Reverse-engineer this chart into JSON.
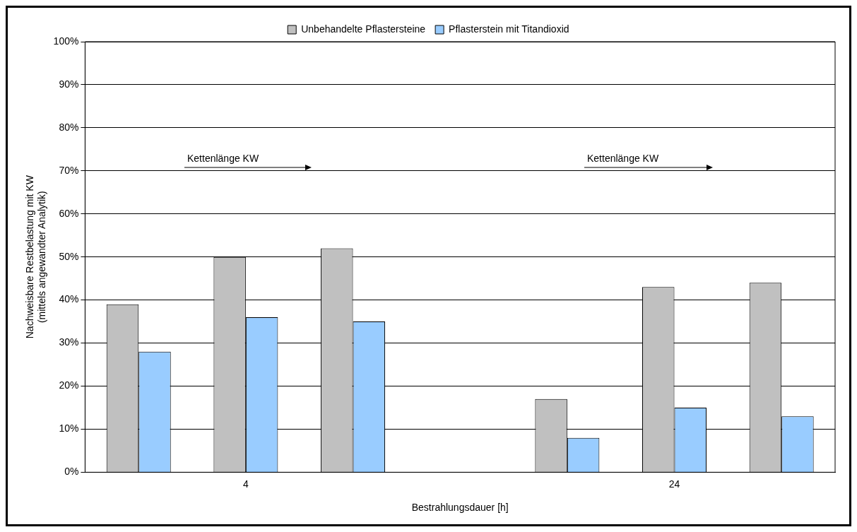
{
  "chart_data": {
    "type": "bar",
    "xlabel": "Bestrahlungsdauer [h]",
    "ylabel": "Nachweisbare Restbelastung mit KW\n(mittels angewandter Analytik)",
    "categories": [
      null,
      "4",
      null,
      null,
      null,
      "24",
      null
    ],
    "series": [
      {
        "name": "Unbehandelte Pflastersteine",
        "color": "#c0c0c0",
        "values": [
          39,
          50,
          52,
          null,
          17,
          43,
          44
        ]
      },
      {
        "name": "Pflasterstein mit Titandioxid",
        "color": "#99ccff",
        "values": [
          28,
          36,
          35,
          null,
          8,
          15,
          13
        ]
      }
    ],
    "ylim": [
      0,
      100
    ],
    "yticks": [
      {
        "value": 0,
        "label": "0%"
      },
      {
        "value": 10,
        "label": "10%"
      },
      {
        "value": 20,
        "label": "20%"
      },
      {
        "value": 30,
        "label": "30%"
      },
      {
        "value": 40,
        "label": "40%"
      },
      {
        "value": 50,
        "label": "50%"
      },
      {
        "value": 60,
        "label": "60%"
      },
      {
        "value": 70,
        "label": "70%"
      },
      {
        "value": 80,
        "label": "80%"
      },
      {
        "value": 90,
        "label": "90%"
      },
      {
        "value": 100,
        "label": "100%"
      }
    ],
    "grid": "y",
    "legend": "top",
    "annotations": [
      "Kettenlänge KW",
      "Kettenlänge KW"
    ]
  }
}
